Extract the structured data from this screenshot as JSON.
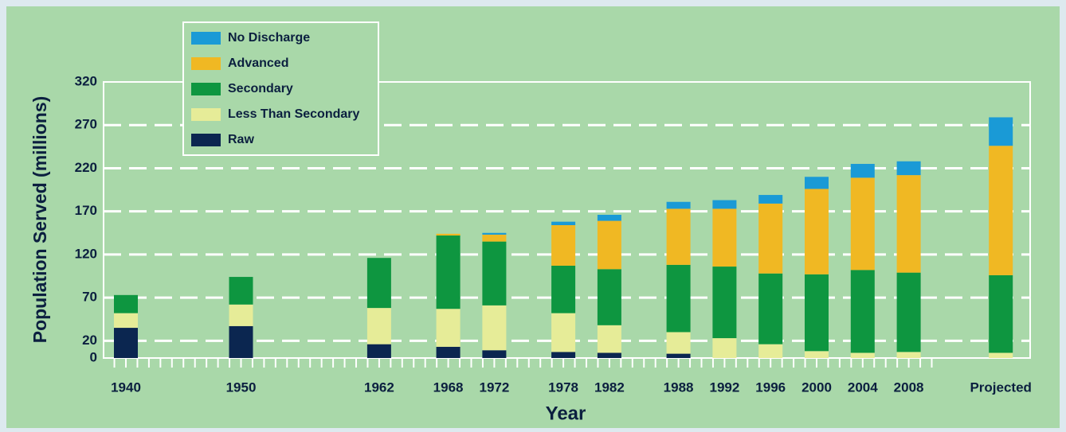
{
  "chart_data": {
    "type": "bar",
    "stacked": true,
    "xlabel": "Year",
    "ylabel": "Population Served (millions)",
    "categories": [
      "1940",
      "1950",
      "1962",
      "1968",
      "1972",
      "1978",
      "1982",
      "1988",
      "1992",
      "1996",
      "2000",
      "2004",
      "2008",
      "Projected"
    ],
    "series": [
      {
        "name": "Raw",
        "color": "#0b2650",
        "values": [
          35,
          37,
          16,
          13,
          9,
          7,
          6,
          5,
          0,
          0,
          0,
          0,
          0,
          0
        ]
      },
      {
        "name": "Less Than Secondary",
        "color": "#e6ec98",
        "values": [
          17,
          25,
          42,
          44,
          52,
          45,
          32,
          25,
          23,
          16,
          8,
          6,
          7,
          6
        ]
      },
      {
        "name": "Secondary",
        "color": "#0e9640",
        "values": [
          21,
          32,
          58,
          85,
          74,
          55,
          65,
          78,
          83,
          82,
          89,
          96,
          92,
          90
        ]
      },
      {
        "name": "Advanced",
        "color": "#f0b823",
        "values": [
          0,
          0,
          0,
          2,
          8,
          47,
          56,
          65,
          67,
          81,
          99,
          107,
          113,
          150
        ]
      },
      {
        "name": "No Discharge",
        "color": "#1a9ad6",
        "values": [
          0,
          0,
          0,
          0,
          2,
          4,
          7,
          8,
          10,
          10,
          14,
          16,
          16,
          33
        ]
      }
    ],
    "ylim": [
      0,
      320
    ],
    "yticks": [
      0,
      20,
      70,
      120,
      170,
      220,
      270,
      320
    ],
    "grid": true,
    "legend": "upper left"
  }
}
